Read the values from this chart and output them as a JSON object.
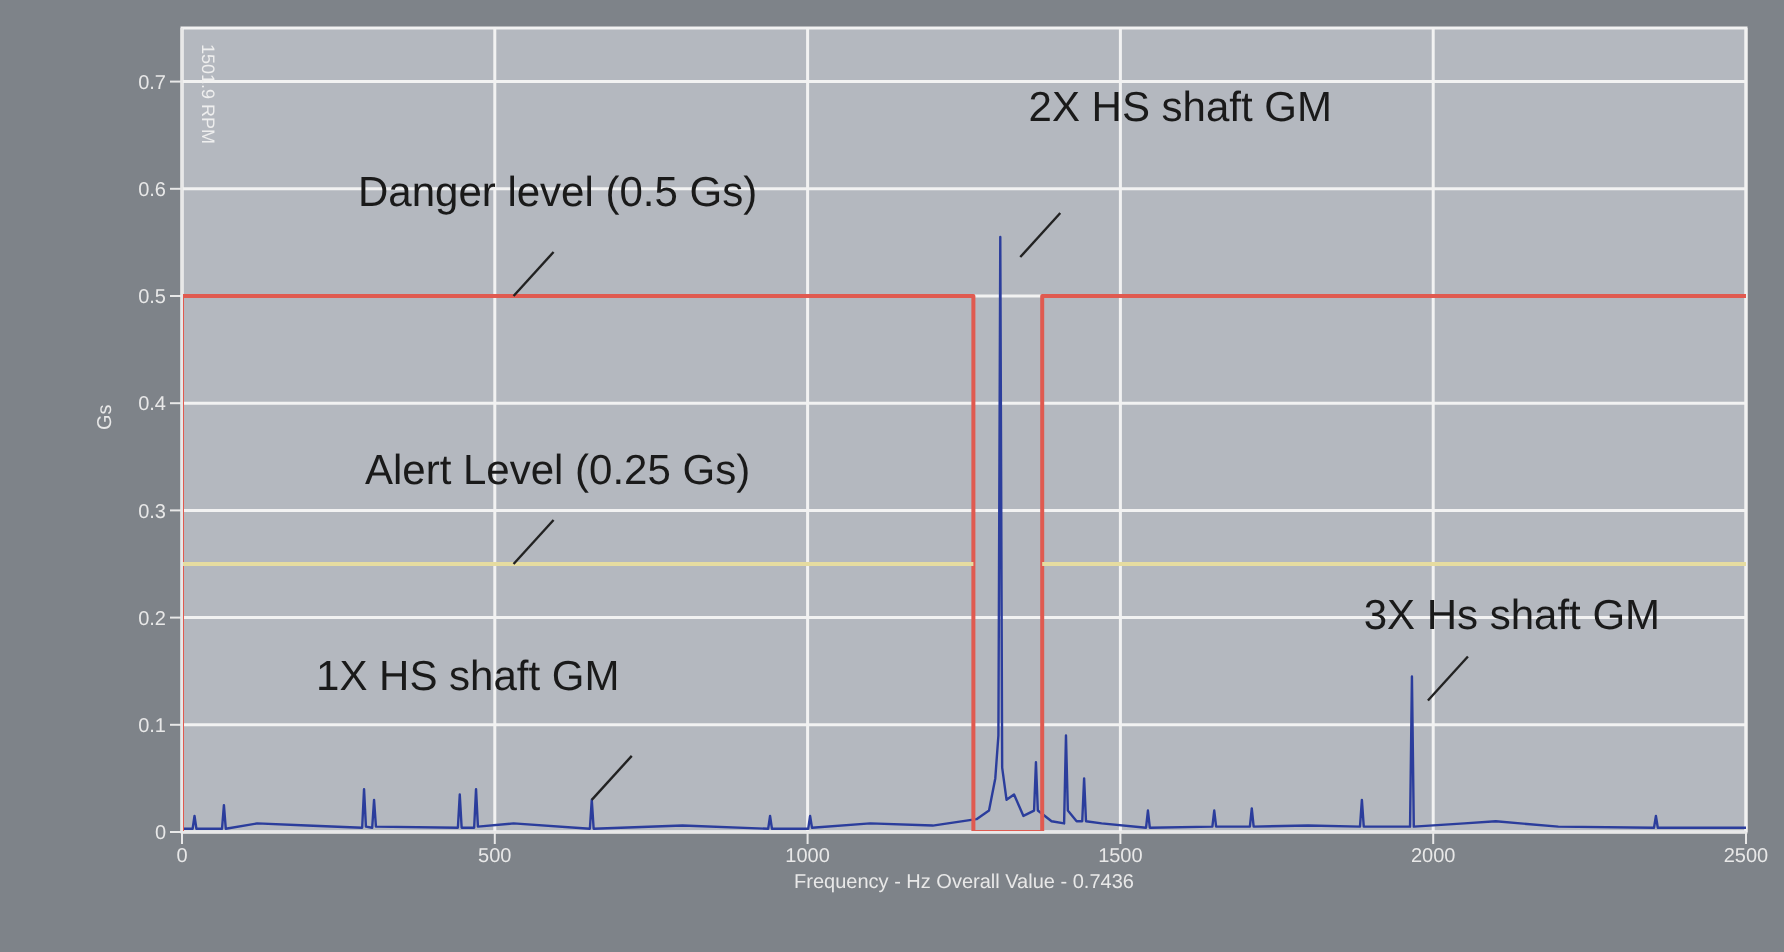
{
  "chart_data": {
    "type": "line",
    "xlabel": "Frequency - Hz  Overall Value - 0.7436",
    "ylabel": "Gs",
    "xlim": [
      0,
      2500
    ],
    "xticks": [
      0,
      500,
      1000,
      1500,
      2000,
      2500
    ],
    "ylim": [
      0,
      0.75
    ],
    "yticks": [
      0,
      0.1,
      0.2,
      0.3,
      0.4,
      0.5,
      0.6,
      0.7
    ],
    "grid": true,
    "marker": "none",
    "line_style": "solid",
    "series": [
      {
        "color": "#2b3d9c",
        "x": [
          0,
          17,
          20,
          23,
          64,
          67,
          70,
          120,
          200,
          288,
          291,
          294,
          304,
          307,
          310,
          441,
          444,
          447,
          467,
          470,
          473,
          530,
          652,
          655,
          658,
          800,
          937,
          940,
          943,
          1001,
          1004,
          1007,
          1100,
          1200,
          1270,
          1290,
          1300,
          1305,
          1308,
          1311,
          1318,
          1330,
          1345,
          1362,
          1365,
          1368,
          1390,
          1410,
          1413,
          1416,
          1430,
          1439,
          1442,
          1445,
          1470,
          1541,
          1544,
          1547,
          1647,
          1650,
          1653,
          1707,
          1710,
          1713,
          1800,
          1883,
          1886,
          1889,
          1963,
          1966,
          1969,
          2050,
          2100,
          2200,
          2353,
          2356,
          2359,
          2500
        ],
        "values": [
          0.003,
          0.003,
          0.015,
          0.003,
          0.003,
          0.025,
          0.003,
          0.008,
          0.006,
          0.004,
          0.04,
          0.005,
          0.004,
          0.03,
          0.005,
          0.004,
          0.035,
          0.004,
          0.004,
          0.04,
          0.005,
          0.008,
          0.003,
          0.03,
          0.003,
          0.006,
          0.003,
          0.015,
          0.003,
          0.003,
          0.015,
          0.004,
          0.008,
          0.006,
          0.012,
          0.02,
          0.05,
          0.09,
          0.555,
          0.06,
          0.03,
          0.035,
          0.015,
          0.02,
          0.065,
          0.02,
          0.01,
          0.008,
          0.09,
          0.02,
          0.01,
          0.01,
          0.05,
          0.01,
          0.008,
          0.004,
          0.02,
          0.004,
          0.005,
          0.02,
          0.005,
          0.005,
          0.022,
          0.005,
          0.006,
          0.005,
          0.03,
          0.005,
          0.005,
          0.145,
          0.005,
          0.008,
          0.01,
          0.005,
          0.004,
          0.015,
          0.004,
          0.004
        ]
      },
      {
        "color": "#e05a50",
        "x": [
          0,
          0,
          1265,
          1265,
          1375,
          1375,
          2500
        ],
        "values": [
          0,
          0.5,
          0.5,
          0,
          0,
          0.5,
          0.5
        ]
      },
      {
        "color": "#e6dca0",
        "x": [
          0,
          1265,
          1320,
          1375,
          2500
        ],
        "values": [
          0.25,
          0.25,
          null,
          0.25,
          0.25
        ]
      }
    ],
    "annotations": [
      {
        "text": "Danger level (0.5 Gs)",
        "x": 530,
        "y": 0.5
      },
      {
        "text": "Alert Level (0.25 Gs)",
        "x": 530,
        "y": 0.25
      },
      {
        "text": "1X HS shaft GM",
        "x": 655,
        "y": 0.03
      },
      {
        "text": "2X HS shaft GM",
        "x": 1308,
        "y": 0.555
      },
      {
        "text": "3X Hs shaft GM",
        "x": 1966,
        "y": 0.145
      },
      "1501.9 RPM"
    ]
  }
}
